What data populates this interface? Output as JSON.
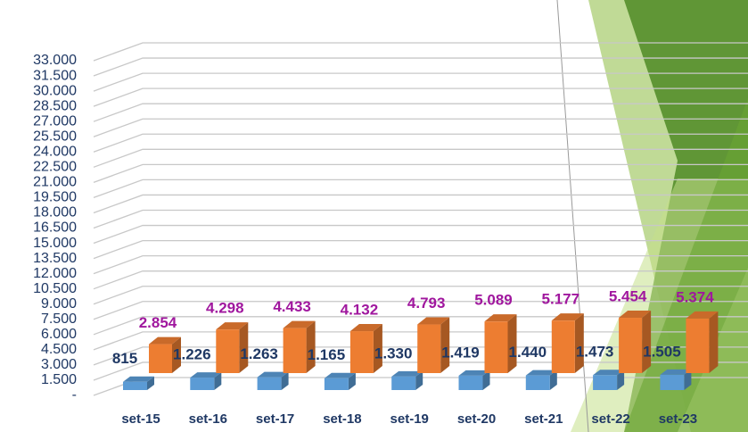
{
  "chart_data": {
    "type": "bar3d",
    "categories": [
      "set-15",
      "set-16",
      "set-17",
      "set-18",
      "set-19",
      "set-20",
      "set-21",
      "set-22",
      "set-23"
    ],
    "series": [
      {
        "color": "#5b9bd5",
        "label_color": "#1f3864",
        "values": [
          815,
          1226,
          1263,
          1165,
          1330,
          1419,
          1440,
          1473,
          1505
        ],
        "value_labels": [
          "815",
          "1.226",
          "1.263",
          "1.165",
          "1.330",
          "1.419",
          "1.440",
          "1.473",
          "1.505"
        ]
      },
      {
        "color": "#ed7d31",
        "label_color": "#a0179e",
        "values": [
          2854,
          4298,
          4433,
          4132,
          4793,
          5089,
          5177,
          5454,
          5374
        ],
        "value_labels": [
          "2.854",
          "4.298",
          "4.433",
          "4.132",
          "4.793",
          "5.089",
          "5.177",
          "5.454",
          "5.374"
        ]
      }
    ],
    "ylim": [
      0,
      33000
    ],
    "yticks": [
      {
        "value": 0,
        "label": "-"
      },
      {
        "value": 1500,
        "label": "1.500"
      },
      {
        "value": 3000,
        "label": "3.000"
      },
      {
        "value": 4500,
        "label": "4.500"
      },
      {
        "value": 6000,
        "label": "6.000"
      },
      {
        "value": 7500,
        "label": "7.500"
      },
      {
        "value": 9000,
        "label": "9.000"
      },
      {
        "value": 10500,
        "label": "10.500"
      },
      {
        "value": 12000,
        "label": "12.000"
      },
      {
        "value": 13500,
        "label": "13.500"
      },
      {
        "value": 15000,
        "label": "15.000"
      },
      {
        "value": 16500,
        "label": "16.500"
      },
      {
        "value": 18000,
        "label": "18.000"
      },
      {
        "value": 19500,
        "label": "19.500"
      },
      {
        "value": 21000,
        "label": "21.000"
      },
      {
        "value": 22500,
        "label": "22.500"
      },
      {
        "value": 24000,
        "label": "24.000"
      },
      {
        "value": 25500,
        "label": "25.500"
      },
      {
        "value": 27000,
        "label": "27.000"
      },
      {
        "value": 28500,
        "label": "28.500"
      },
      {
        "value": 30000,
        "label": "30.000"
      },
      {
        "value": 31500,
        "label": "31.500"
      },
      {
        "value": 33000,
        "label": "33.000"
      }
    ],
    "grid": true
  }
}
